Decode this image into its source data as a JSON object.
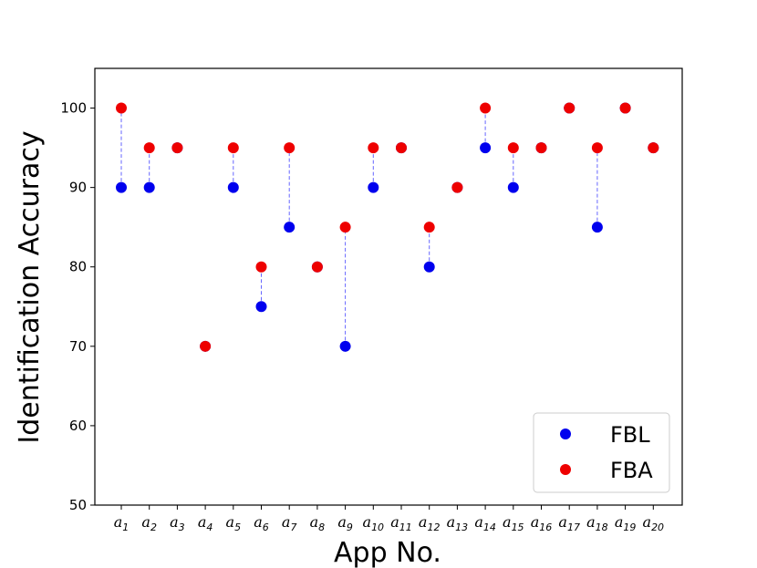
{
  "chart_data": {
    "type": "scatter",
    "xlabel": "App No.",
    "ylabel": "Identification Accuracy",
    "ylim": [
      50,
      105
    ],
    "yticks": [
      50,
      60,
      70,
      80,
      90,
      100
    ],
    "categories": [
      {
        "base": "a",
        "sub": "1"
      },
      {
        "base": "a",
        "sub": "2"
      },
      {
        "base": "a",
        "sub": "3"
      },
      {
        "base": "a",
        "sub": "4"
      },
      {
        "base": "a",
        "sub": "5"
      },
      {
        "base": "a",
        "sub": "6"
      },
      {
        "base": "a",
        "sub": "7"
      },
      {
        "base": "a",
        "sub": "8"
      },
      {
        "base": "a",
        "sub": "9"
      },
      {
        "base": "a",
        "sub": "10"
      },
      {
        "base": "a",
        "sub": "11"
      },
      {
        "base": "a",
        "sub": "12"
      },
      {
        "base": "a",
        "sub": "13"
      },
      {
        "base": "a",
        "sub": "14"
      },
      {
        "base": "a",
        "sub": "15"
      },
      {
        "base": "a",
        "sub": "16"
      },
      {
        "base": "a",
        "sub": "17"
      },
      {
        "base": "a",
        "sub": "18"
      },
      {
        "base": "a",
        "sub": "19"
      },
      {
        "base": "a",
        "sub": "20"
      }
    ],
    "series": [
      {
        "name": "FBL",
        "color": "#0000ee",
        "values": [
          90,
          90,
          95,
          70,
          90,
          75,
          85,
          80,
          70,
          90,
          95,
          80,
          90,
          95,
          90,
          95,
          100,
          85,
          100,
          95
        ]
      },
      {
        "name": "FBA",
        "color": "#ee0000",
        "values": [
          100,
          95,
          95,
          70,
          95,
          80,
          95,
          80,
          85,
          95,
          95,
          85,
          90,
          100,
          95,
          95,
          100,
          95,
          100,
          95
        ]
      }
    ],
    "connector_color": "#6666ff",
    "connector_style": "dashed",
    "legend_position": "lower-right",
    "grid": false
  }
}
